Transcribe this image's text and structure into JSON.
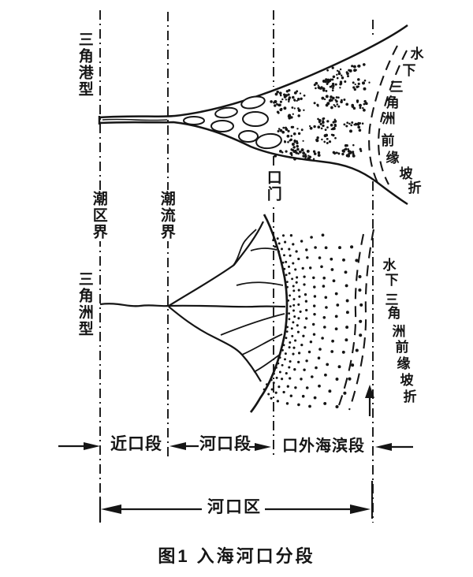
{
  "figure": {
    "caption": "图1  入海河口分段",
    "top_diagram": {
      "type_label": "三角港型",
      "tidal_limit_label": "潮区界",
      "tidal_current_limit_label": "潮流界",
      "river_mouth_label": "口门",
      "delta_front_label": "水下三角洲前缘坡折"
    },
    "bottom_diagram": {
      "type_label": "三角洲型",
      "delta_front_label": "水下三角洲前缘坡折"
    },
    "segments": {
      "near_mouth": "近口段",
      "mouth": "河口段",
      "offshore": "口外海滨段",
      "estuary_zone": "河口区"
    },
    "colors": {
      "ink": "#151515",
      "background": "#ffffff"
    }
  }
}
